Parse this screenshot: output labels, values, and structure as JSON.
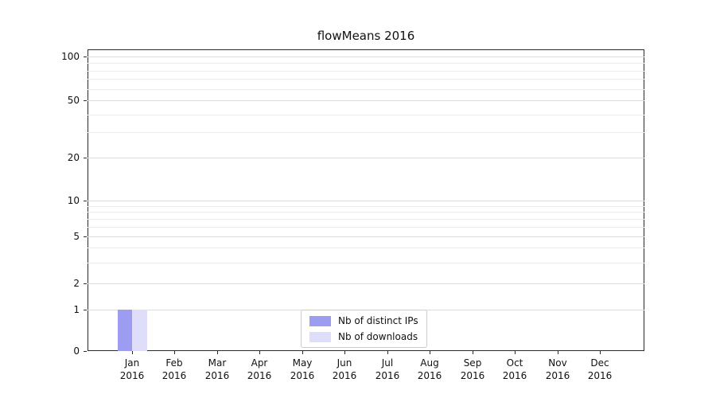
{
  "chart_data": {
    "type": "bar",
    "title": "flowMeans 2016",
    "categories": [
      "Jan",
      "Feb",
      "Mar",
      "Apr",
      "May",
      "Jun",
      "Jul",
      "Aug",
      "Sep",
      "Oct",
      "Nov",
      "Dec"
    ],
    "year_label": "2016",
    "series": [
      {
        "name": "Nb of distinct IPs",
        "color": "#9c9cf0",
        "values": [
          1,
          0,
          0,
          0,
          0,
          0,
          0,
          0,
          0,
          0,
          0,
          0
        ]
      },
      {
        "name": "Nb of downloads",
        "color": "#dedefa",
        "values": [
          1,
          0,
          0,
          0,
          0,
          0,
          0,
          0,
          0,
          0,
          0,
          0
        ]
      }
    ],
    "yticks": [
      0,
      1,
      2,
      5,
      10,
      20,
      50,
      100
    ],
    "y_scale": "symlog",
    "ylim": [
      0,
      110
    ],
    "grid": "horizontal",
    "legend_position": "lower center",
    "colors": {
      "major_grid": "#dcdcdc",
      "minor_grid": "#ebebeb",
      "axis": "#2b2b2b",
      "text": "#111111"
    }
  }
}
